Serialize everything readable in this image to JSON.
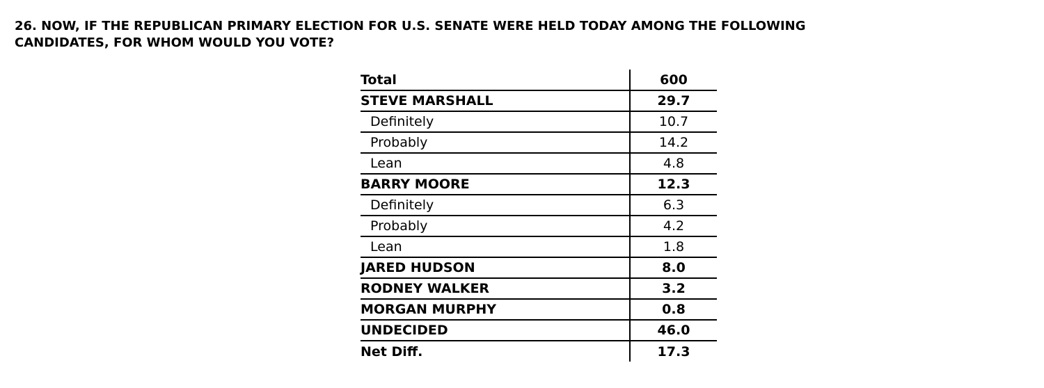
{
  "page": {
    "background_color": "#ffffff",
    "text_color": "#000000",
    "rule_color": "#000000"
  },
  "question": {
    "text": "26. NOW, IF THE REPUBLICAN PRIMARY ELECTION FOR U.S. SENATE WERE HELD TODAY AMONG THE FOLLOWING CANDIDATES, FOR WHOM WOULD YOU VOTE?"
  },
  "table": {
    "rows": [
      {
        "label": "Total",
        "value": "600",
        "type": "header"
      },
      {
        "label": "STEVE MARSHALL",
        "value": "29.7",
        "type": "candidate"
      },
      {
        "label": "Definitely",
        "value": "10.7",
        "type": "sub"
      },
      {
        "label": "Probably",
        "value": "14.2",
        "type": "sub"
      },
      {
        "label": "Lean",
        "value": "4.8",
        "type": "sub"
      },
      {
        "label": "BARRY MOORE",
        "value": "12.3",
        "type": "candidate"
      },
      {
        "label": "Definitely",
        "value": "6.3",
        "type": "sub"
      },
      {
        "label": "Probably",
        "value": "4.2",
        "type": "sub"
      },
      {
        "label": "Lean",
        "value": "1.8",
        "type": "sub"
      },
      {
        "label": "JARED HUDSON",
        "value": "8.0",
        "type": "candidate"
      },
      {
        "label": "RODNEY WALKER",
        "value": "3.2",
        "type": "candidate"
      },
      {
        "label": "MORGAN MURPHY",
        "value": "0.8",
        "type": "candidate"
      },
      {
        "label": "UNDECIDED",
        "value": "46.0",
        "type": "candidate"
      },
      {
        "label": "Net Diff.",
        "value": "17.3",
        "type": "summary"
      }
    ]
  }
}
